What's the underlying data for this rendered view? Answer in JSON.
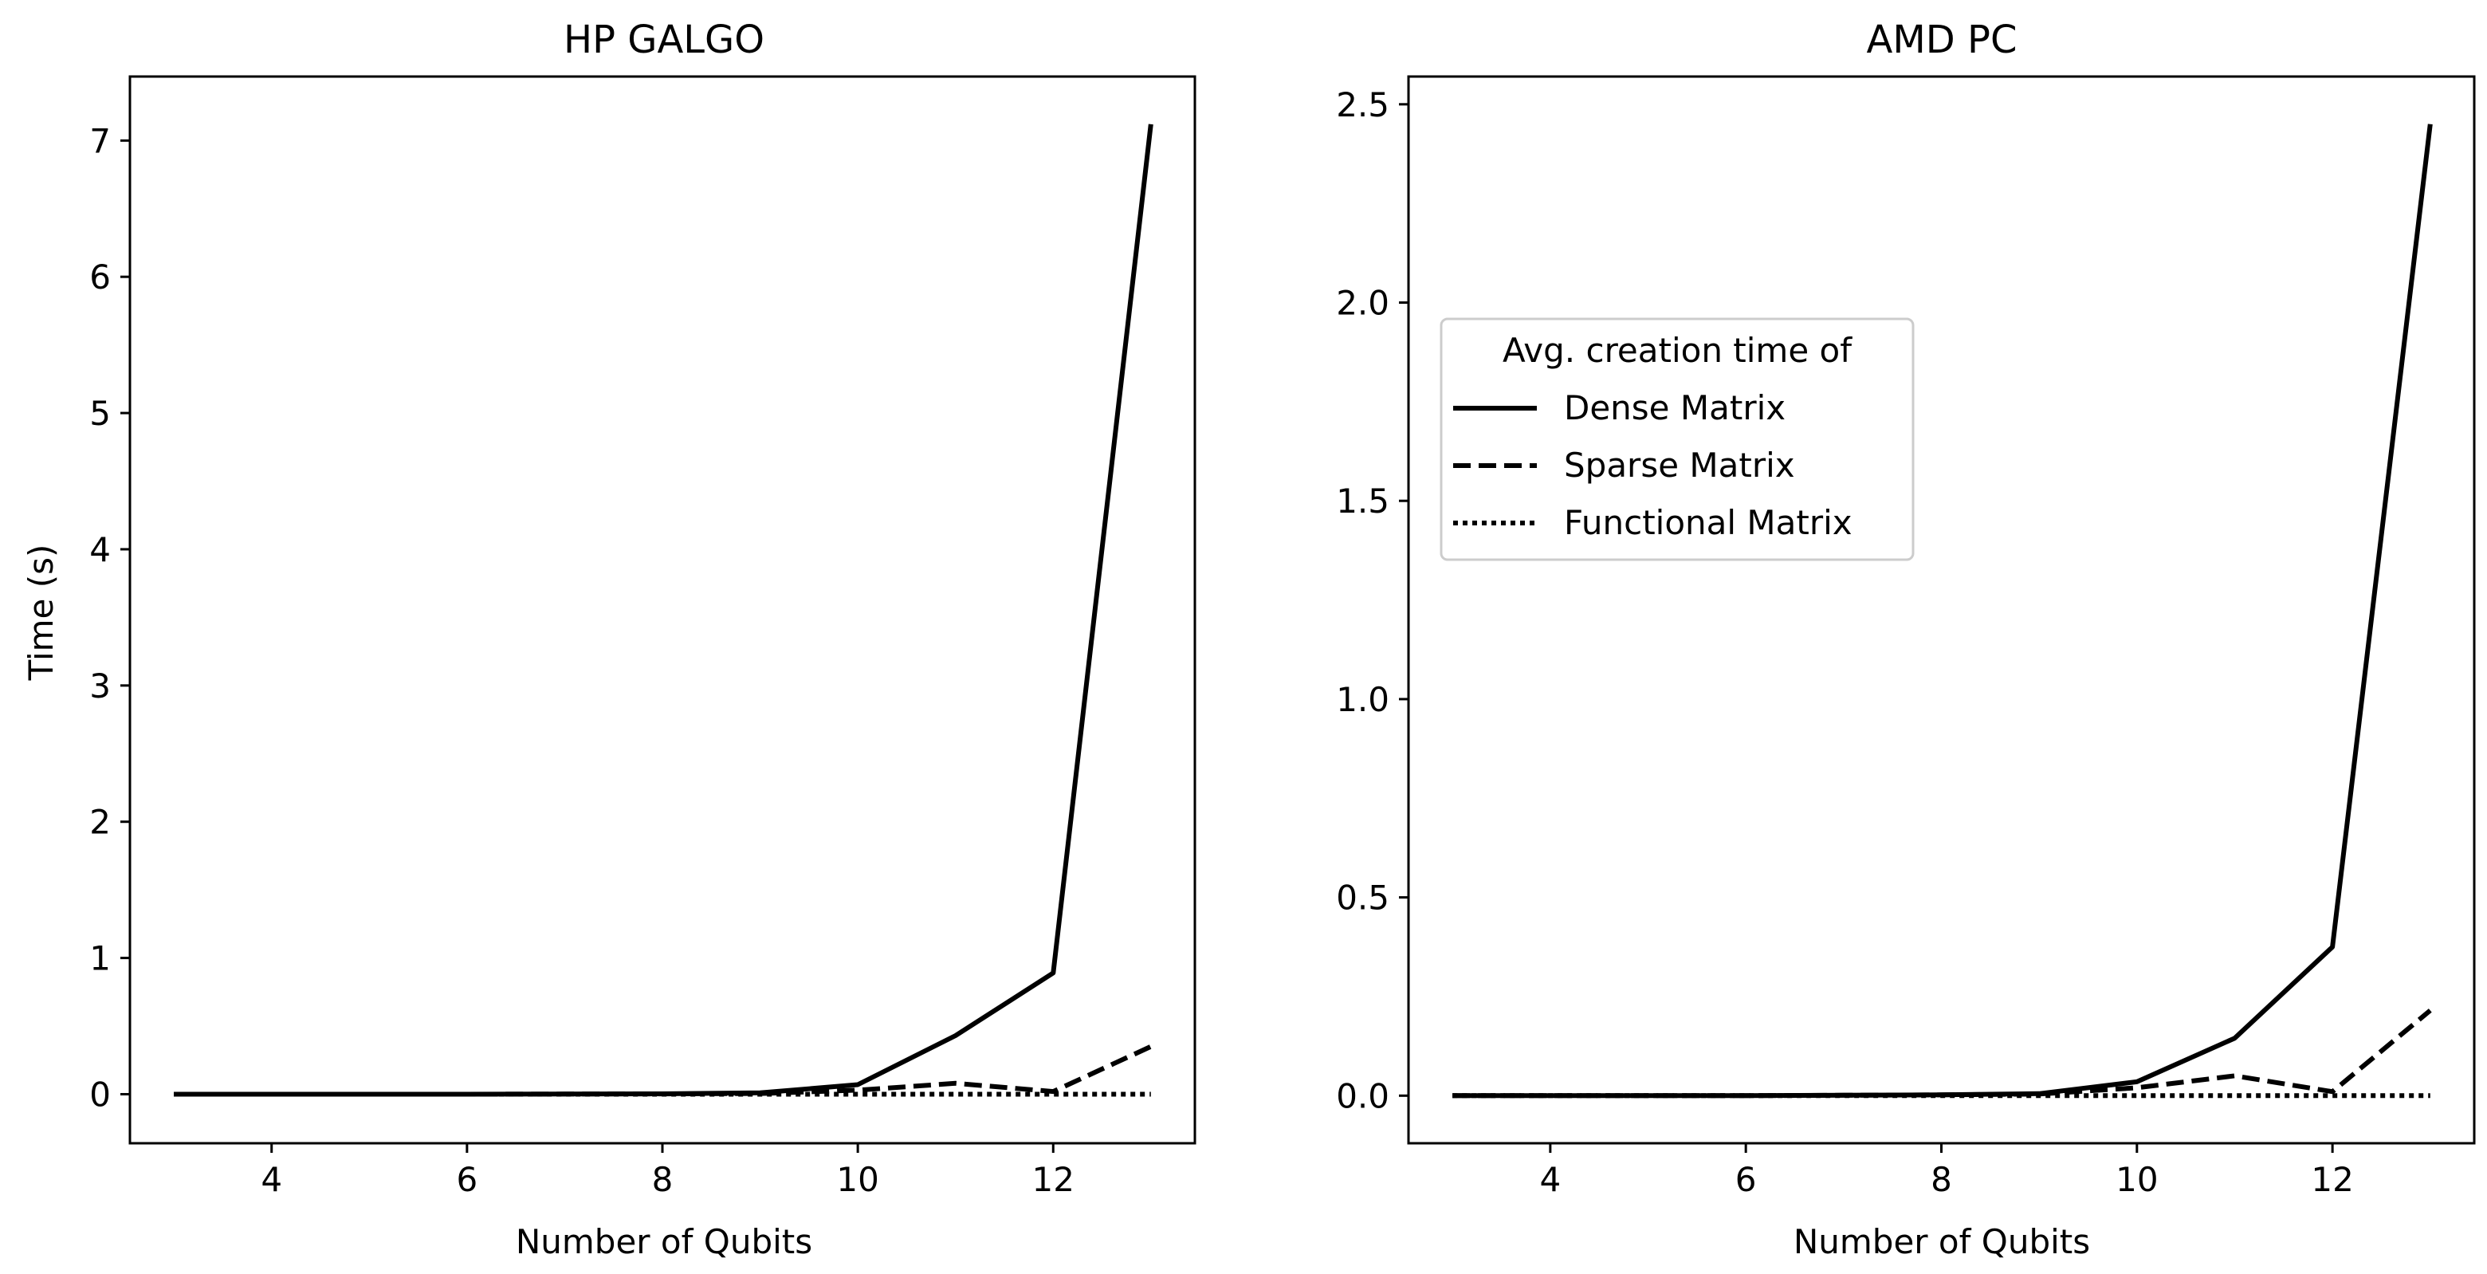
{
  "chart_data": [
    {
      "type": "line",
      "title": "HP GALGO",
      "xlabel": "Number of Qubits",
      "ylabel": "Time (s)",
      "xlim": [
        2.55,
        13.45
      ],
      "ylim": [
        -0.36,
        7.47
      ],
      "xticks": [
        4,
        6,
        8,
        10,
        12
      ],
      "xtick_labels": [
        "4",
        "6",
        "8",
        "10",
        "12"
      ],
      "yticks": [
        0,
        1,
        2,
        3,
        4,
        5,
        6,
        7
      ],
      "ytick_labels": [
        "0",
        "1",
        "2",
        "3",
        "4",
        "5",
        "6",
        "7"
      ],
      "grid": false,
      "x": [
        3,
        4,
        5,
        6,
        7,
        8,
        9,
        10,
        11,
        12,
        13
      ],
      "series": [
        {
          "name": "Dense Matrix",
          "style": "solid",
          "values": [
            0,
            0,
            0,
            0,
            0.001,
            0.003,
            0.01,
            0.07,
            0.43,
            0.89,
            7.12
          ]
        },
        {
          "name": "Sparse Matrix",
          "style": "dashed",
          "values": [
            0,
            0,
            0,
            0,
            0.001,
            0.002,
            0.005,
            0.03,
            0.08,
            0.02,
            0.35
          ]
        },
        {
          "name": "Functional Matrix",
          "style": "dotted",
          "values": [
            0,
            0,
            0,
            0,
            0,
            0,
            0,
            0,
            0,
            0,
            0
          ]
        }
      ]
    },
    {
      "type": "line",
      "title": "AMD PC",
      "xlabel": "Number of Qubits",
      "ylabel": "",
      "xlim": [
        2.55,
        13.45
      ],
      "ylim": [
        -0.12,
        2.57
      ],
      "xticks": [
        4,
        6,
        8,
        10,
        12
      ],
      "xtick_labels": [
        "4",
        "6",
        "8",
        "10",
        "12"
      ],
      "yticks": [
        0,
        0.5,
        1,
        1.5,
        2,
        2.5
      ],
      "ytick_labels": [
        "0.0",
        "0.5",
        "1.0",
        "1.5",
        "2.0",
        "2.5"
      ],
      "grid": false,
      "legend": {
        "placement": "center-left",
        "title": "Avg. creation time of",
        "entries": [
          "Dense Matrix",
          "Sparse Matrix",
          "Functional Matrix"
        ]
      },
      "x": [
        3,
        4,
        5,
        6,
        7,
        8,
        9,
        10,
        11,
        12,
        13
      ],
      "series": [
        {
          "name": "Dense Matrix",
          "style": "solid",
          "values": [
            0,
            0,
            0,
            0,
            0.001,
            0.002,
            0.005,
            0.035,
            0.145,
            0.375,
            2.45
          ]
        },
        {
          "name": "Sparse Matrix",
          "style": "dashed",
          "values": [
            0,
            0,
            0,
            0,
            0.001,
            0.002,
            0.004,
            0.02,
            0.05,
            0.01,
            0.215
          ]
        },
        {
          "name": "Functional Matrix",
          "style": "dotted",
          "values": [
            0,
            0,
            0,
            0,
            0,
            0,
            0,
            0,
            0,
            0,
            0
          ]
        }
      ]
    }
  ]
}
